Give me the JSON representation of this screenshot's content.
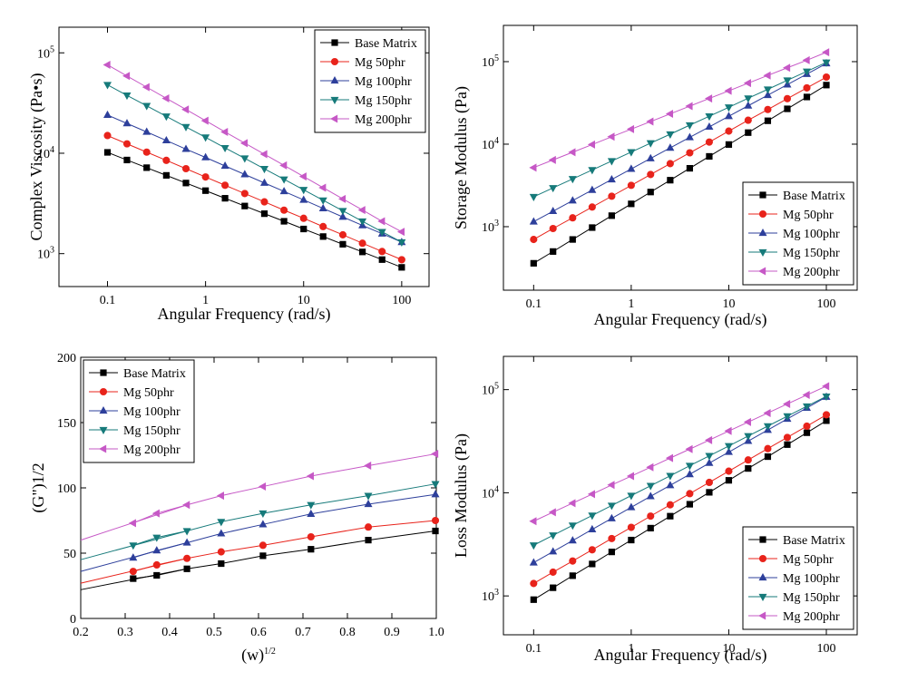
{
  "chart_data": [
    {
      "type": "line",
      "x_label": "Angular Frequency (rad/s)",
      "y_label": "Complex Viscosity (Pa•s)",
      "xscale": "log",
      "yscale": "log",
      "xlim": [
        0.032,
        190
      ],
      "ylim": [
        470,
        180000
      ],
      "xticks": [
        0.1,
        1,
        10,
        100
      ],
      "yticks": [
        {
          "value": 1000,
          "label": "10",
          "exp": "3"
        },
        {
          "value": 10000,
          "label": "10",
          "exp": "4"
        },
        {
          "value": 100000,
          "label": "10",
          "exp": "5"
        }
      ],
      "legend": "top-right",
      "x": [
        0.1,
        0.158,
        0.251,
        0.398,
        0.631,
        1,
        1.58,
        2.51,
        3.98,
        6.31,
        10,
        15.8,
        25.1,
        39.8,
        63.1,
        100
      ],
      "series": [
        {
          "name": "Base Matrix",
          "color": "#000000",
          "marker": "square",
          "values": [
            10200,
            8560,
            7180,
            6020,
            5050,
            4240,
            3560,
            2980,
            2500,
            2100,
            1760,
            1480,
            1240,
            1040,
            872,
            730
          ]
        },
        {
          "name": "Mg 50phr",
          "color": "#e8231b",
          "marker": "circle",
          "values": [
            15000,
            12400,
            10260,
            8490,
            7020,
            5800,
            4800,
            3970,
            3280,
            2710,
            2250,
            1860,
            1540,
            1270,
            1050,
            870
          ]
        },
        {
          "name": "Mg 100phr",
          "color": "#2d3f9b",
          "marker": "triangle-up",
          "values": [
            24000,
            19800,
            16300,
            13400,
            11000,
            9080,
            7470,
            6150,
            5060,
            4170,
            3430,
            2820,
            2320,
            1910,
            1580,
            1300
          ]
        },
        {
          "name": "Mg 150phr",
          "color": "#167a7a",
          "marker": "triangle-down",
          "values": [
            48000,
            37700,
            29700,
            23300,
            18300,
            14400,
            11300,
            8900,
            7000,
            5500,
            4320,
            3400,
            2670,
            2100,
            1650,
            1300
          ]
        },
        {
          "name": "Mg 200phr",
          "color": "#c658c6",
          "marker": "triangle-left",
          "values": [
            76000,
            58800,
            45500,
            35200,
            27300,
            21100,
            16300,
            12600,
            9780,
            7570,
            5860,
            4540,
            3510,
            2720,
            2100,
            1650
          ]
        }
      ]
    },
    {
      "type": "line",
      "x_label": "Angular Frequency (rad/s)",
      "y_label": "Storage Modulus (Pa)",
      "xscale": "log",
      "yscale": "log",
      "xlim": [
        0.049,
        207
      ],
      "ylim": [
        170,
        275000
      ],
      "xticks": [
        0.1,
        1,
        10,
        100
      ],
      "yticks": [
        {
          "value": 1000,
          "label": "10",
          "exp": "3"
        },
        {
          "value": 10000,
          "label": "10",
          "exp": "4"
        },
        {
          "value": 100000,
          "label": "10",
          "exp": "5"
        }
      ],
      "legend": "bottom-right",
      "x": [
        0.1,
        0.158,
        0.251,
        0.398,
        0.631,
        1,
        1.58,
        2.51,
        3.98,
        6.31,
        10,
        15.8,
        25.1,
        39.8,
        63.1,
        100
      ],
      "series": [
        {
          "name": "Base Matrix",
          "color": "#000000",
          "marker": "square",
          "values": [
            360,
            500,
            700,
            975,
            1360,
            1890,
            2630,
            3660,
            5100,
            7110,
            9900,
            13800,
            19200,
            26800,
            37300,
            52000
          ]
        },
        {
          "name": "Mg 50phr",
          "color": "#e8231b",
          "marker": "circle",
          "values": [
            700,
            950,
            1280,
            1730,
            2340,
            3170,
            4290,
            5810,
            7860,
            10600,
            14400,
            19500,
            26300,
            35600,
            48100,
            65000
          ]
        },
        {
          "name": "Mg 100phr",
          "color": "#2d3f9b",
          "marker": "triangle-up",
          "values": [
            1150,
            1540,
            2070,
            2780,
            3730,
            5010,
            6720,
            9010,
            12100,
            16200,
            21800,
            29200,
            39200,
            52600,
            70600,
            95000
          ]
        },
        {
          "name": "Mg 150phr",
          "color": "#167a7a",
          "marker": "triangle-down",
          "values": [
            2300,
            2950,
            3790,
            4870,
            6250,
            8030,
            10300,
            13200,
            17000,
            21800,
            28000,
            36000,
            46200,
            59400,
            76200,
            98000
          ]
        },
        {
          "name": "Mg 200phr",
          "color": "#c658c6",
          "marker": "triangle-left",
          "values": [
            5200,
            6440,
            7980,
            9890,
            12300,
            15200,
            18800,
            23300,
            28900,
            35800,
            44300,
            54900,
            68000,
            84300,
            104000,
            130000
          ]
        }
      ]
    },
    {
      "type": "line",
      "x_label": "(w)",
      "x_label_sup": "1/2",
      "y_label": "(G\")1/2",
      "xscale": "linear",
      "yscale": "linear",
      "xlim": [
        0.2,
        1
      ],
      "ylim": [
        0,
        200
      ],
      "xticks": [
        0.2,
        0.3,
        0.4,
        0.5,
        0.6,
        0.7,
        0.8,
        0.9,
        {
          "value": 1,
          "label": "1.0"
        }
      ],
      "yticks": [
        0,
        50,
        100,
        150,
        200
      ],
      "legend": "top-left",
      "x": [
        0.318,
        0.371,
        0.439,
        0.516,
        0.61,
        0.718,
        0.847,
        0.998
      ],
      "series": [
        {
          "name": "Base Matrix",
          "color": "#000000",
          "marker": "square",
          "values": [
            30.5,
            33,
            38,
            42,
            48,
            53,
            60,
            67
          ],
          "fit": {
            "x": [
              0.2,
              0.439
            ],
            "values": [
              22,
              38
            ]
          }
        },
        {
          "name": "Mg 50phr",
          "color": "#e8231b",
          "marker": "circle",
          "values": [
            36,
            41,
            46,
            51,
            56,
            62.5,
            70,
            75
          ],
          "fit": {
            "x": [
              0.2,
              0.439
            ],
            "values": [
              27,
              46
            ]
          }
        },
        {
          "name": "Mg 100phr",
          "color": "#2d3f9b",
          "marker": "triangle-up",
          "values": [
            46.5,
            52,
            58,
            65,
            72,
            80,
            87.5,
            95
          ],
          "fit": {
            "x": [
              0.2,
              0.439
            ],
            "values": [
              36,
              58
            ]
          }
        },
        {
          "name": "Mg 150phr",
          "color": "#167a7a",
          "marker": "triangle-down",
          "values": [
            56,
            62,
            67,
            74,
            80.5,
            87,
            94,
            103
          ],
          "fit": {
            "x": [
              0.2,
              0.439
            ],
            "values": [
              45,
              67
            ]
          }
        },
        {
          "name": "Mg 200phr",
          "color": "#c658c6",
          "marker": "triangle-left",
          "values": [
            73,
            80.5,
            87,
            94,
            101,
            109,
            117,
            126
          ],
          "fit": {
            "x": [
              0.2,
              0.439
            ],
            "values": [
              60,
              87
            ]
          }
        }
      ]
    },
    {
      "type": "line",
      "x_label": "Angular Frequency (rad/s)",
      "y_label": "Loss Modulus (Pa)",
      "xscale": "log",
      "yscale": "log",
      "xlim": [
        0.049,
        207
      ],
      "ylim": [
        420,
        210000
      ],
      "xticks": [
        0.1,
        1,
        10,
        100
      ],
      "yticks": [
        {
          "value": 1000,
          "label": "10",
          "exp": "3"
        },
        {
          "value": 10000,
          "label": "10",
          "exp": "4"
        },
        {
          "value": 100000,
          "label": "10",
          "exp": "5"
        }
      ],
      "legend": "bottom-right",
      "x": [
        0.1,
        0.158,
        0.251,
        0.398,
        0.631,
        1,
        1.58,
        2.51,
        3.98,
        6.31,
        10,
        15.8,
        25.1,
        39.8,
        63.1,
        100
      ],
      "series": [
        {
          "name": "Base Matrix",
          "color": "#000000",
          "marker": "square",
          "values": [
            920,
            1200,
            1570,
            2040,
            2670,
            3480,
            4540,
            5930,
            7740,
            10100,
            13200,
            17200,
            22400,
            29300,
            38200,
            50000
          ]
        },
        {
          "name": "Mg 50phr",
          "color": "#e8231b",
          "marker": "circle",
          "values": [
            1320,
            1700,
            2180,
            2800,
            3600,
            4620,
            5940,
            7640,
            9810,
            12600,
            16200,
            20800,
            26800,
            34400,
            44200,
            57000
          ]
        },
        {
          "name": "Mg 100phr",
          "color": "#2d3f9b",
          "marker": "triangle-up",
          "values": [
            2100,
            2690,
            3440,
            4410,
            5640,
            7220,
            9240,
            11800,
            15100,
            19400,
            24800,
            31700,
            40600,
            52000,
            66500,
            85000
          ]
        },
        {
          "name": "Mg 150phr",
          "color": "#167a7a",
          "marker": "triangle-down",
          "values": [
            3100,
            3870,
            4830,
            6030,
            7520,
            9390,
            11700,
            14600,
            18300,
            22800,
            28400,
            35500,
            44300,
            55300,
            69000,
            86000
          ]
        },
        {
          "name": "Mg 200phr",
          "color": "#c658c6",
          "marker": "triangle-left",
          "values": [
            5300,
            6480,
            7930,
            9700,
            11900,
            14500,
            17700,
            21700,
            26500,
            32400,
            39700,
            48500,
            59300,
            72600,
            88800,
            108000
          ]
        }
      ]
    }
  ]
}
